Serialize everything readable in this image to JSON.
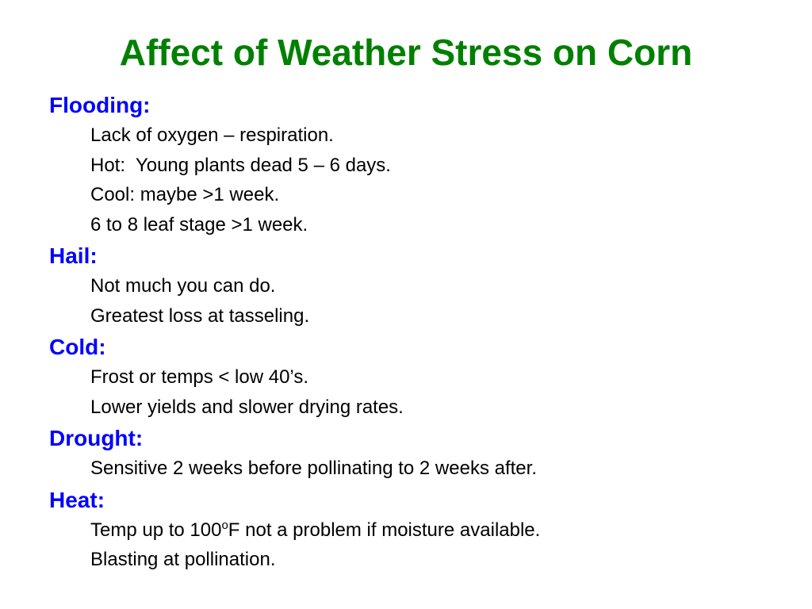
{
  "title": "Affect of Weather Stress on Corn",
  "colors": {
    "title": "#008000",
    "heading": "#0000ff",
    "text": "#000000"
  },
  "sections": [
    {
      "heading": "Flooding:",
      "items": [
        "Lack of oxygen – respiration.",
        "Hot:  Young plants dead 5 – 6 days.",
        "Cool: maybe >1 week.",
        "6 to 8 leaf stage >1 week."
      ]
    },
    {
      "heading": "Hail:",
      "items": [
        "Not much you can do.",
        "Greatest loss at tasseling."
      ]
    },
    {
      "heading": "Cold:",
      "items": [
        "Frost or temps < low 40’s.",
        "Lower yields and slower drying rates."
      ]
    },
    {
      "heading": "Drought:",
      "items": [
        "Sensitive 2 weeks before pollinating to 2 weeks after."
      ]
    },
    {
      "heading": "Heat:",
      "temp_item": {
        "before": "Temp up to 100",
        "sup": "o",
        "after": "F not a problem if moisture available."
      },
      "items": [
        "Blasting at pollination."
      ]
    }
  ]
}
